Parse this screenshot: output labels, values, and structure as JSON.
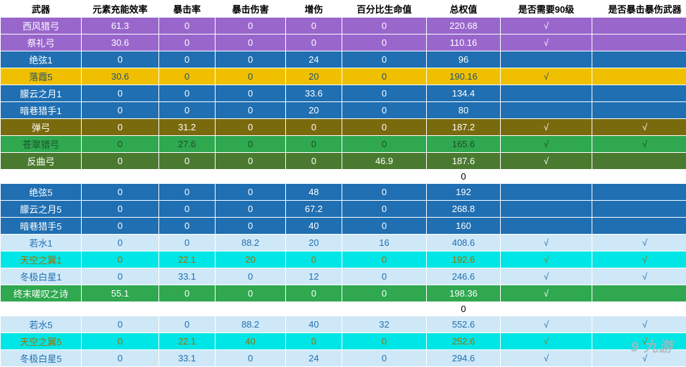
{
  "columns": [
    "武器",
    "元素充能效率",
    "暴击率",
    "暴击伤害",
    "增伤",
    "百分比生命值",
    "总权值",
    "是否需要90级",
    "是否暴击暴伤武器"
  ],
  "col_widths": [
    "115",
    "110",
    "80",
    "100",
    "80",
    "120",
    "105",
    "130",
    "150"
  ],
  "check_mark": "√",
  "header_bg": "#ffffff",
  "header_color": "#000000",
  "rows": [
    {
      "type": "data",
      "bg": "#9966cc",
      "fg": "#ffffff",
      "cells": [
        "西风猎弓",
        "61.3",
        "0",
        "0",
        "0",
        "0",
        "220.68",
        "√",
        ""
      ]
    },
    {
      "type": "data",
      "bg": "#9966cc",
      "fg": "#ffffff",
      "cells": [
        "祭礼弓",
        "30.6",
        "0",
        "0",
        "0",
        "0",
        "110.16",
        "√",
        ""
      ]
    },
    {
      "type": "data",
      "bg": "#1f6fb2",
      "fg": "#ffffff",
      "cells": [
        "绝弦1",
        "0",
        "0",
        "0",
        "24",
        "0",
        "96",
        "",
        ""
      ]
    },
    {
      "type": "data",
      "bg": "#f0c000",
      "fg": "#1b4f72",
      "cells": [
        "落霞5",
        "30.6",
        "0",
        "0",
        "20",
        "0",
        "190.16",
        "√",
        ""
      ]
    },
    {
      "type": "data",
      "bg": "#1f6fb2",
      "fg": "#ffffff",
      "cells": [
        "朦云之月1",
        "0",
        "0",
        "0",
        "33.6",
        "0",
        "134.4",
        "",
        ""
      ]
    },
    {
      "type": "data",
      "bg": "#1f6fb2",
      "fg": "#ffffff",
      "cells": [
        "暗巷猎手1",
        "0",
        "0",
        "0",
        "20",
        "0",
        "80",
        "",
        ""
      ]
    },
    {
      "type": "data",
      "bg": "#7a6a0e",
      "fg": "#ffffff",
      "cells": [
        "弹弓",
        "0",
        "31.2",
        "0",
        "0",
        "0",
        "187.2",
        "√",
        "√"
      ]
    },
    {
      "type": "data",
      "bg": "#2fa84f",
      "fg": "#1b4f2a",
      "cells": [
        "苍翠猎弓",
        "0",
        "27.6",
        "0",
        "0",
        "0",
        "165.6",
        "√",
        "√"
      ]
    },
    {
      "type": "data",
      "bg": "#4a7a2f",
      "fg": "#ffffff",
      "cells": [
        "反曲弓",
        "0",
        "0",
        "0",
        "0",
        "46.9",
        "187.6",
        "√",
        ""
      ]
    },
    {
      "type": "spacer",
      "bg": "#ffffff",
      "fg": "#000000",
      "cells": [
        "",
        "",
        "",
        "",
        "",
        "",
        "0",
        "",
        ""
      ]
    },
    {
      "type": "data",
      "bg": "#1f6fb2",
      "fg": "#ffffff",
      "cells": [
        "绝弦5",
        "0",
        "0",
        "0",
        "48",
        "0",
        "192",
        "",
        ""
      ]
    },
    {
      "type": "data",
      "bg": "#1f6fb2",
      "fg": "#ffffff",
      "cells": [
        "朦云之月5",
        "0",
        "0",
        "0",
        "67.2",
        "0",
        "268.8",
        "",
        ""
      ]
    },
    {
      "type": "data",
      "bg": "#1f6fb2",
      "fg": "#ffffff",
      "cells": [
        "暗巷猎手5",
        "0",
        "0",
        "0",
        "40",
        "0",
        "160",
        "",
        ""
      ]
    },
    {
      "type": "data",
      "bg": "#cfe8f7",
      "fg": "#1f6fb2",
      "cells": [
        "若水1",
        "0",
        "0",
        "88.2",
        "20",
        "16",
        "408.6",
        "√",
        "√"
      ]
    },
    {
      "type": "data",
      "bg": "#00e5e5",
      "fg": "#a07000",
      "cells": [
        "天空之翼1",
        "0",
        "22.1",
        "20",
        "0",
        "0",
        "192.6",
        "√",
        "√"
      ]
    },
    {
      "type": "data",
      "bg": "#cfe8f7",
      "fg": "#1f6fb2",
      "cells": [
        "冬极白星1",
        "0",
        "33.1",
        "0",
        "12",
        "0",
        "246.6",
        "√",
        "√"
      ]
    },
    {
      "type": "data",
      "bg": "#2fa84f",
      "fg": "#ffffff",
      "cells": [
        "终末嗟叹之诗",
        "55.1",
        "0",
        "0",
        "0",
        "0",
        "198.36",
        "√",
        ""
      ]
    },
    {
      "type": "spacer",
      "bg": "#ffffff",
      "fg": "#000000",
      "cells": [
        "",
        "",
        "",
        "",
        "",
        "",
        "0",
        "",
        ""
      ]
    },
    {
      "type": "data",
      "bg": "#cfe8f7",
      "fg": "#1f6fb2",
      "cells": [
        "若水5",
        "0",
        "0",
        "88.2",
        "40",
        "32",
        "552.6",
        "√",
        "√"
      ]
    },
    {
      "type": "data",
      "bg": "#00e5e5",
      "fg": "#a07000",
      "cells": [
        "天空之翼5",
        "0",
        "22.1",
        "40",
        "0",
        "0",
        "252.6",
        "√",
        "√"
      ]
    },
    {
      "type": "data",
      "bg": "#cfe8f7",
      "fg": "#1f6fb2",
      "cells": [
        "冬极白星5",
        "0",
        "33.1",
        "0",
        "24",
        "0",
        "294.6",
        "√",
        "√"
      ]
    }
  ],
  "watermark": "9 九游"
}
